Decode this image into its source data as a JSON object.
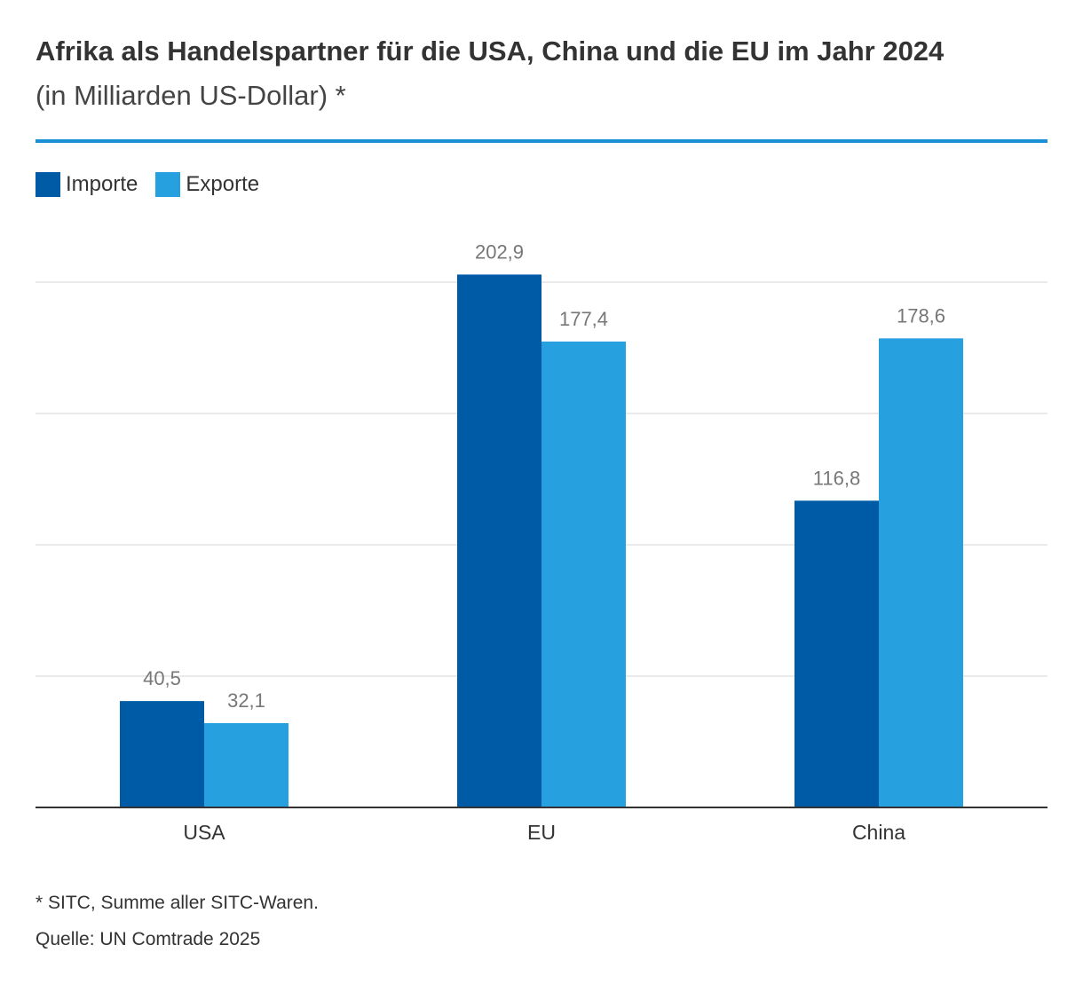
{
  "header": {
    "title": "Afrika als Handelspartner für die USA, China und die EU im Jahr 2024",
    "subtitle": "(in Milliarden US-Dollar) *"
  },
  "colors": {
    "rule": "#1a8fd6",
    "importe": "#005ba6",
    "exporte": "#26a0df",
    "grid": "#e3e3e3",
    "axis": "#333333",
    "value_label": "#777777",
    "category_label": "#333333"
  },
  "chart_data": {
    "type": "bar",
    "title": "Afrika als Handelspartner für die USA, China und die EU im Jahr 2024",
    "subtitle": "(in Milliarden US-Dollar) *",
    "categories": [
      "USA",
      "EU",
      "China"
    ],
    "series": [
      {
        "name": "Importe",
        "values": [
          40.5,
          202.9,
          116.8
        ],
        "labels": [
          "40,5",
          "202,9",
          "116,8"
        ]
      },
      {
        "name": "Exporte",
        "values": [
          32.1,
          177.4,
          178.6
        ],
        "labels": [
          "32,1",
          "177,4",
          "178,6"
        ]
      }
    ],
    "ylim": [
      0,
      200
    ],
    "yticks": [
      0,
      50,
      100,
      150,
      200
    ],
    "grid": true,
    "legend": "top-left",
    "xlabel": "",
    "ylabel": ""
  },
  "footer": {
    "footnote": "* SITC, Summe aller SITC-Waren.",
    "source": "Quelle: UN Comtrade 2025"
  }
}
